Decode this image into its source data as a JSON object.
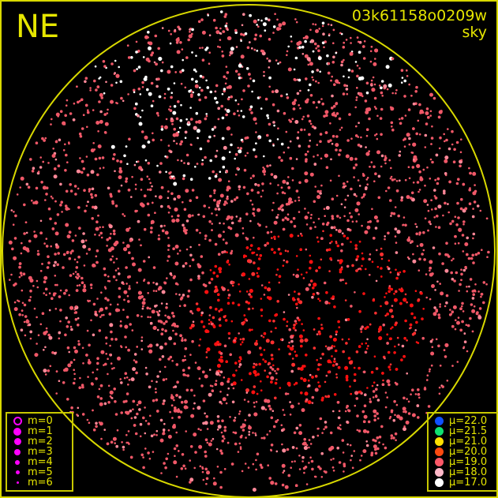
{
  "direction_label": "NE",
  "frame_id": "03k61158o0209w",
  "frame_type": "sky",
  "colors": {
    "frame": "#d8d800",
    "text": "#e6e600",
    "magnitude_marker": "#ff00ff"
  },
  "magnitude_legend": [
    {
      "label": "m=0",
      "style": "ring"
    },
    {
      "label": "m=1"
    },
    {
      "label": "m=2"
    },
    {
      "label": "m=3"
    },
    {
      "label": "m=4"
    },
    {
      "label": "m=5"
    },
    {
      "label": "m=6"
    }
  ],
  "surface_brightness_legend": [
    {
      "label": "μ=22.0",
      "color": "#1050ff"
    },
    {
      "label": "μ=21.5",
      "color": "#10e070"
    },
    {
      "label": "μ=21.0",
      "color": "#ffe000"
    },
    {
      "label": "μ=20.0",
      "color": "#ff4a10"
    },
    {
      "label": "μ=19.0",
      "color": "#ff5868"
    },
    {
      "label": "μ=18.0",
      "color": "#ffb8c8"
    },
    {
      "label": "μ=17.0",
      "color": "#ffffff"
    }
  ]
}
